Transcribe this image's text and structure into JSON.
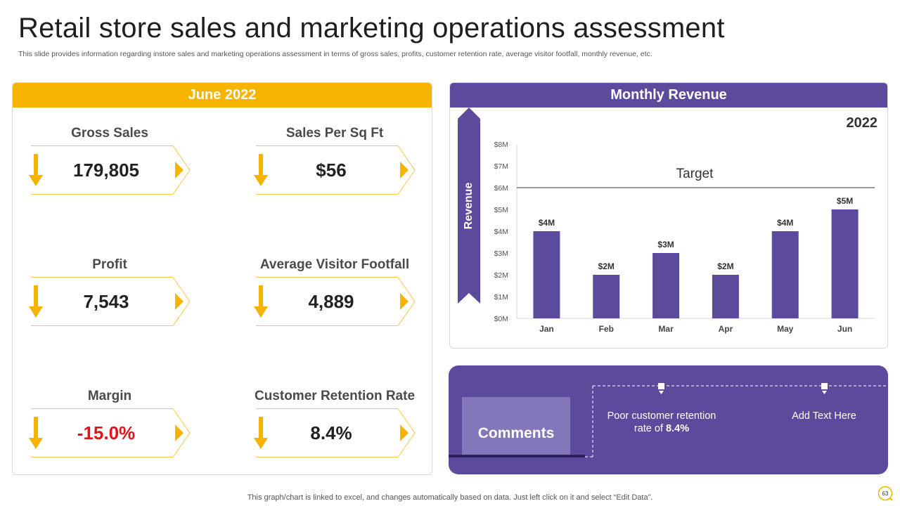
{
  "slide": {
    "title": "Retail store sales and marketing operations assessment",
    "subtitle": "This slide provides information regarding instore sales and marketing operations assessment in terms of gross sales, profits, customer retention rate, average visitor footfall, monthly revenue, etc.",
    "footer": "This graph/chart is linked to excel,  and changes automatically based on data. Just left click on it and select “Edit Data”.",
    "page_number": "63"
  },
  "kpi_panel": {
    "header": "June 2022",
    "items": [
      {
        "label": "Gross Sales",
        "value": "179,805"
      },
      {
        "label": "Sales Per Sq Ft",
        "value": "$56"
      },
      {
        "label": "Profit",
        "value": "7,543"
      },
      {
        "label": "Average Visitor Footfall",
        "value": "4,889"
      },
      {
        "label": "Margin",
        "value": "-15.0%"
      },
      {
        "label": "Customer Retention Rate",
        "value": "8.4%"
      }
    ]
  },
  "revenue_panel": {
    "header": "Monthly Revenue",
    "year": "2022"
  },
  "chart_data": {
    "type": "bar",
    "categories": [
      "Jan",
      "Feb",
      "Mar",
      "Apr",
      "May",
      "Jun"
    ],
    "values": [
      4,
      2,
      3,
      2,
      4,
      5
    ],
    "data_labels": [
      "$4M",
      "$2M",
      "$3M",
      "$2M",
      "$4M",
      "$5M"
    ],
    "ylabel": "Revenue",
    "ylim": [
      0,
      8
    ],
    "y_ticks": [
      "$0M",
      "$1M",
      "$2M",
      "$3M",
      "$4M",
      "$5M",
      "$6M",
      "$7M",
      "$8M"
    ],
    "target": {
      "label": "Target",
      "value": 6
    },
    "grid": false,
    "bar_color": "#5c4b9c"
  },
  "comments": {
    "title": "Comments",
    "items": [
      {
        "text": "Poor customer retention rate of ",
        "bold": "8.4%"
      },
      {
        "text": "Add Text Here",
        "bold": ""
      }
    ]
  },
  "colors": {
    "accent_yellow": "#f6b400",
    "accent_purple": "#5c4b9c",
    "negative_red": "#e0151b"
  }
}
